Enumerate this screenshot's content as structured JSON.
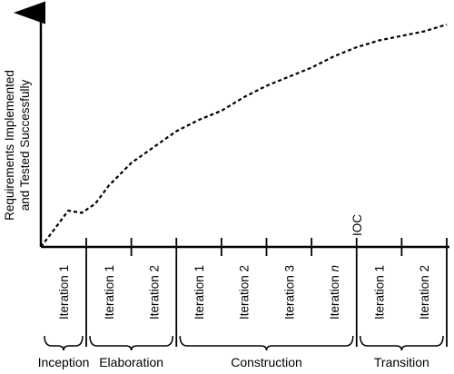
{
  "chart_data": {
    "type": "line",
    "ylabel": [
      "Requirements Implemented",
      "and Tested Successfully"
    ],
    "marker": {
      "label": "IOC"
    },
    "iterations": [
      {
        "label": "Iteration ",
        "n": "1"
      },
      {
        "label": "Iteration ",
        "n": "1"
      },
      {
        "label": "Iteration ",
        "n": "2"
      },
      {
        "label": "Iteration ",
        "n": "1"
      },
      {
        "label": "Iteration ",
        "n": "2"
      },
      {
        "label": "Iteration ",
        "n": "3"
      },
      {
        "label": "Iteration ",
        "n": "n",
        "italic": true
      },
      {
        "label": "Iteration ",
        "n": "1"
      },
      {
        "label": "Iteration ",
        "n": "2"
      }
    ],
    "phases": [
      {
        "name": "Inception",
        "start": 0,
        "end": 1
      },
      {
        "name": "Elaboration",
        "start": 1,
        "end": 3
      },
      {
        "name": "Construction",
        "start": 3,
        "end": 7
      },
      {
        "name": "Transition",
        "start": 7,
        "end": 9
      }
    ],
    "ioc_boundary": 7,
    "series": [
      {
        "line_style": "dashed",
        "x": [
          0,
          0.3,
          0.6,
          0.9,
          1.2,
          1.5,
          2,
          2.5,
          3,
          3.5,
          4,
          4.5,
          5,
          5.5,
          6,
          6.5,
          7,
          7.5,
          8,
          8.5,
          9
        ],
        "y": [
          0,
          0.4,
          0.8,
          0.75,
          0.95,
          1.35,
          1.85,
          2.2,
          2.55,
          2.8,
          3.0,
          3.3,
          3.55,
          3.75,
          3.95,
          4.2,
          4.4,
          4.55,
          4.65,
          4.75,
          4.9
        ]
      }
    ],
    "xlim": [
      0,
      9
    ],
    "ylim": [
      0,
      5.0
    ]
  }
}
